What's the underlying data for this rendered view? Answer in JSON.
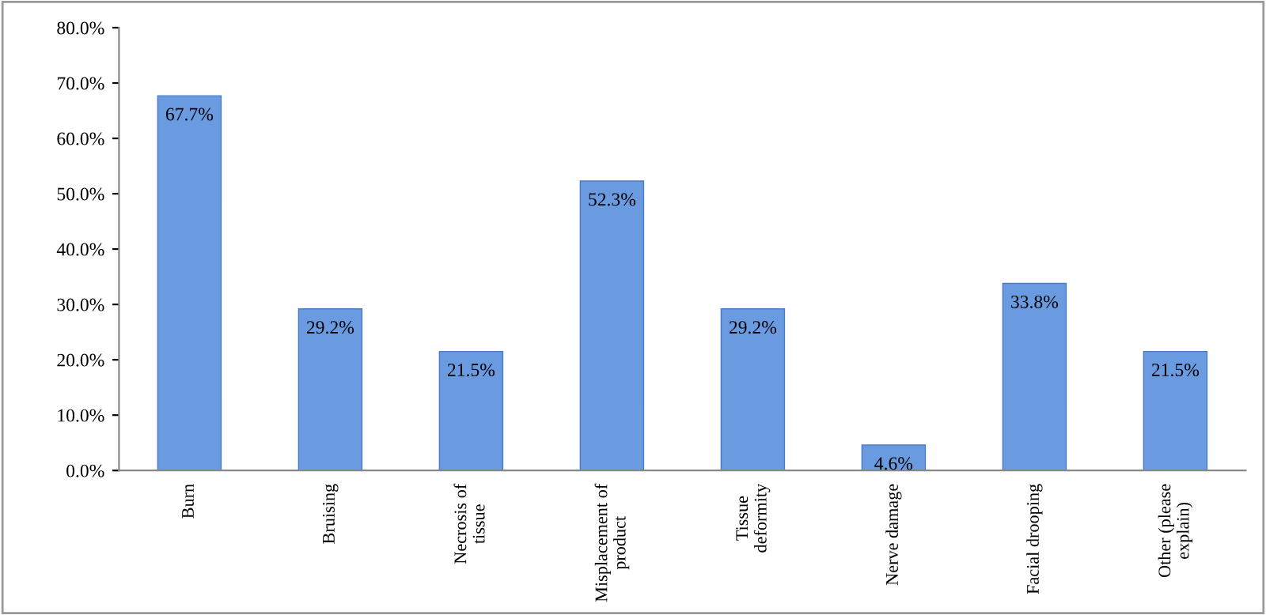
{
  "chart_data": {
    "type": "bar",
    "categories": [
      "Burn",
      "Bruising",
      "Necrosis of tissue",
      "Misplacement of product",
      "Tissue deformity",
      "Nerve damage",
      "Facial drooping",
      "Other (please explain)"
    ],
    "values": [
      67.7,
      29.2,
      21.5,
      52.3,
      29.2,
      4.6,
      33.8,
      21.5
    ],
    "value_labels": [
      "67.7%",
      "29.2%",
      "21.5%",
      "52.3%",
      "29.2%",
      "4.6%",
      "33.8%",
      "21.5%"
    ],
    "color": "#6a9be0",
    "ylim": [
      0,
      80
    ],
    "yticks": [
      {
        "value": 0,
        "label": "0.0%"
      },
      {
        "value": 10,
        "label": "10.0%"
      },
      {
        "value": 20,
        "label": "20.0%"
      },
      {
        "value": 30,
        "label": "30.0%"
      },
      {
        "value": 40,
        "label": "40.0%"
      },
      {
        "value": 50,
        "label": "50.0%"
      },
      {
        "value": 60,
        "label": "60.0%"
      },
      {
        "value": 70,
        "label": "70.0%"
      },
      {
        "value": 80,
        "label": "80.0%"
      }
    ],
    "grid": false
  }
}
